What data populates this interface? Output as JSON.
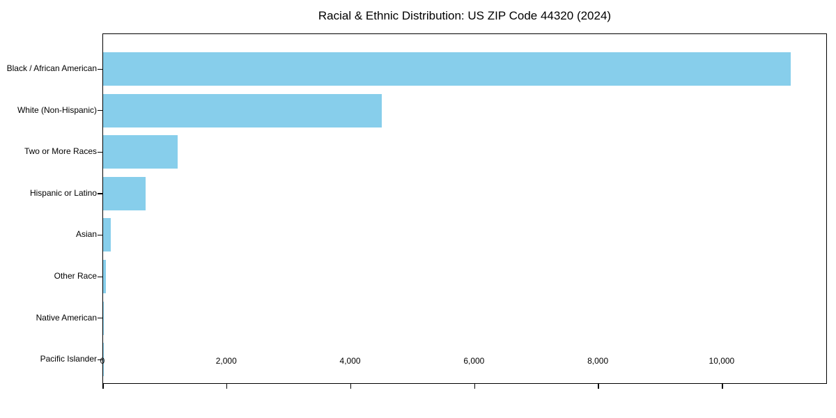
{
  "figure": {
    "background": "#ffffff"
  },
  "chart_data": {
    "type": "bar",
    "orientation": "horizontal",
    "title": "Racial & Ethnic Distribution: US ZIP Code 44320 (2024)",
    "categories": [
      "Black / African American",
      "White (Non-Hispanic)",
      "Two or More Races",
      "Hispanic or Latino",
      "Asian",
      "Other Race",
      "Native American",
      "Pacific Islander"
    ],
    "values": [
      11100,
      4500,
      1200,
      690,
      120,
      45,
      15,
      5
    ],
    "xlabel": "",
    "ylabel": "",
    "xlim": [
      0,
      11700
    ],
    "xticks": [
      0,
      2000,
      4000,
      6000,
      8000,
      10000
    ],
    "xtick_labels": [
      "0",
      "2,000",
      "4,000",
      "6,000",
      "8,000",
      "10,000"
    ],
    "bar_color": "#87CEEB",
    "axis_color": "#000000",
    "text_color": "#000000",
    "grid": false,
    "legend": null
  }
}
